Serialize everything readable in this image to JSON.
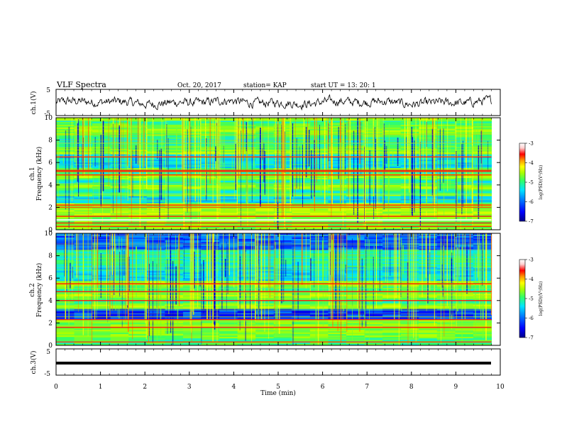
{
  "header": {
    "title": "VLF Spectra",
    "date": "Oct. 20, 2017",
    "station": "station= KAP",
    "start": "start  UT  =   13: 20: 1"
  },
  "chart_data": [
    {
      "type": "line",
      "id": "ch1-waveform",
      "ylabel": "ch.1(V)",
      "ylim": [
        -5,
        5
      ],
      "yticks": [
        "5",
        "-5"
      ],
      "xlim": [
        0,
        10
      ],
      "description_of_trace": "noisy waveform centered near 0 V with excursions of about ±2 V"
    },
    {
      "type": "heatmap",
      "id": "ch1-spectrogram",
      "ylabel": "ch.1\nFrequency (kHz)",
      "ylim": [
        0,
        10
      ],
      "yticks": [
        "0",
        "2",
        "4",
        "6",
        "8",
        "10"
      ],
      "xlim": [
        0,
        9.8
      ],
      "colorbar": {
        "label": "log(PSD)(V²/Hz)",
        "range": [
          -7,
          -3
        ],
        "ticks": [
          "-3",
          "-4",
          "-5",
          "-6",
          "-7"
        ]
      },
      "strong_bands_khz": [
        0.3,
        0.6,
        1.2,
        2.0,
        2.2,
        4.9,
        5.2,
        5.3,
        6.5
      ],
      "white_band_khz": [
        0.8,
        0.95
      ]
    },
    {
      "type": "heatmap",
      "id": "ch2-spectrogram",
      "ylabel": "ch.2\nFrequency (kHz)",
      "ylim": [
        0,
        10
      ],
      "yticks": [
        "0",
        "2",
        "4",
        "6",
        "8",
        "10"
      ],
      "xlim": [
        0,
        9.8
      ],
      "colorbar": {
        "label": "log(PSD)(V²/Hz)",
        "range": [
          -7,
          -3
        ],
        "ticks": [
          "-3",
          "-4",
          "-5",
          "-6",
          "-7"
        ]
      },
      "strong_bands_khz": [
        0.3,
        1.6,
        2.3,
        4.0,
        4.8,
        5.5
      ],
      "white_band_khz": []
    },
    {
      "type": "line",
      "id": "ch3-waveform",
      "ylabel": "ch.3(V)",
      "ylim": [
        -5,
        5
      ],
      "yticks": [
        "5",
        "-5"
      ],
      "xlim": [
        0,
        10
      ],
      "description_of_trace": "flat thick line near -1 V"
    }
  ],
  "xaxis": {
    "label": "Time  (min)",
    "ticks": [
      "0",
      "1",
      "2",
      "3",
      "4",
      "5",
      "6",
      "7",
      "8",
      "9",
      "10"
    ]
  },
  "colors": {
    "colormap": [
      "#00008b",
      "#0000ff",
      "#0080ff",
      "#00e5ff",
      "#33ff66",
      "#aaff00",
      "#ffff00",
      "#ff9900",
      "#ff0000",
      "#ffd0d0",
      "#ffffff"
    ]
  }
}
